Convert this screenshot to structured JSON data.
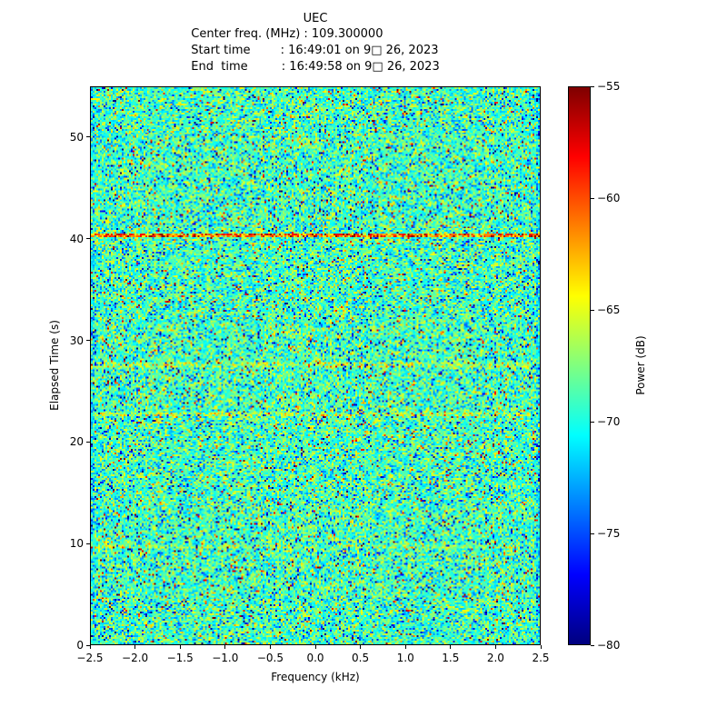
{
  "header": {
    "title": "UEC",
    "center_freq_line": "Center freq. (MHz) : 109.300000",
    "start_line": "Start time        : 16:49:01 on 9□ 26, 2023",
    "end_line": "End  time         : 16:49:58 on 9□ 26, 2023"
  },
  "chart_data": {
    "type": "heatmap",
    "title": "UEC",
    "xlabel": "Frequency (kHz)",
    "ylabel": "Elapsed Time (s)",
    "xlim": [
      -2.5,
      2.5
    ],
    "ylim": [
      0,
      55.0
    ],
    "clim": [
      -80,
      -55
    ],
    "colormap": "jet",
    "grid": false,
    "x_ticks": {
      "values": [
        -2.5,
        -2.0,
        -1.5,
        -1.0,
        -0.5,
        0.0,
        0.5,
        1.0,
        1.5,
        2.0,
        2.5
      ],
      "labels": [
        "−2.5",
        "−2.0",
        "−1.5",
        "−1.0",
        "−0.5",
        "0.0",
        "0.5",
        "1.0",
        "1.5",
        "2.0",
        "2.5"
      ]
    },
    "y_ticks": {
      "values": [
        0,
        10,
        20,
        30,
        40,
        50
      ],
      "labels": [
        "0",
        "10",
        "20",
        "30",
        "40",
        "50"
      ]
    },
    "colorbar": {
      "label": "Power (dB)",
      "min": -80,
      "max": -55,
      "tick_values": [
        -55,
        -60,
        -65,
        -70,
        -75,
        -80
      ],
      "tick_labels": [
        "−55",
        "−60",
        "−65",
        "−70",
        "−75",
        "−80"
      ]
    },
    "noise": {
      "mean_db": -69,
      "std_db": 2.6,
      "bright_prob": 0.025,
      "dark_prob": 0.035,
      "edge_attenuation_db": 1.5
    },
    "features": [
      {
        "type": "horizontal_band",
        "time_s": 40.35,
        "halfwidth_s": 0.25,
        "boost_db": 8
      },
      {
        "type": "horizontal_band",
        "time_s": 22.7,
        "halfwidth_s": 0.2,
        "boost_db": 2.5
      },
      {
        "type": "horizontal_band",
        "time_s": 27.6,
        "halfwidth_s": 0.2,
        "boost_db": 2
      },
      {
        "type": "horizontal_band",
        "time_s": 9.7,
        "halfwidth_s": 0.2,
        "boost_db": 1.5
      }
    ],
    "seed": 42
  }
}
